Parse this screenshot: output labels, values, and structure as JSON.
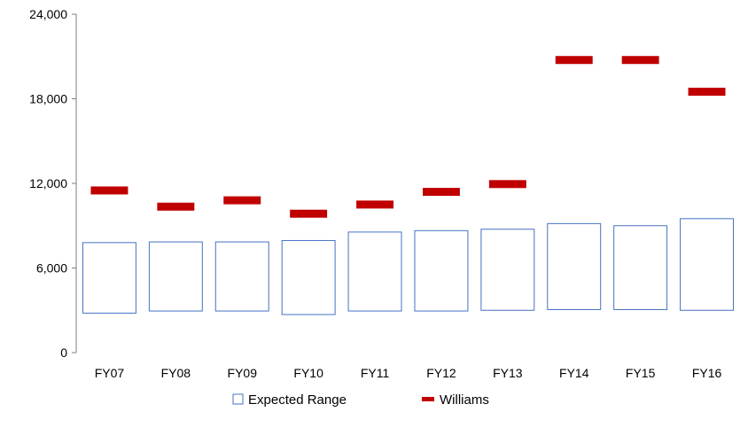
{
  "chart_data": {
    "type": "bar",
    "categories": [
      "FY07",
      "FY08",
      "FY09",
      "FY10",
      "FY11",
      "FY12",
      "FY13",
      "FY14",
      "FY15",
      "FY16"
    ],
    "series": [
      {
        "name": "Expected Range",
        "low": [
          2800,
          2950,
          2950,
          2700,
          2950,
          2950,
          3000,
          3050,
          3050,
          3000
        ],
        "high": [
          7800,
          7850,
          7850,
          7950,
          8550,
          8650,
          8750,
          9150,
          9000,
          9500
        ],
        "color": "#4472C4"
      },
      {
        "name": "Williams",
        "values": [
          11500,
          10350,
          10800,
          9850,
          10500,
          11400,
          11950,
          20750,
          20750,
          18500
        ],
        "color": "#C00000"
      }
    ],
    "ylim": [
      0,
      24000
    ],
    "yticks": [
      0,
      6000,
      12000,
      18000,
      24000
    ],
    "ytick_labels": [
      "0",
      "6,000",
      "12,000",
      "18,000",
      "24,000"
    ],
    "grid": false,
    "legend_position": "bottom"
  }
}
